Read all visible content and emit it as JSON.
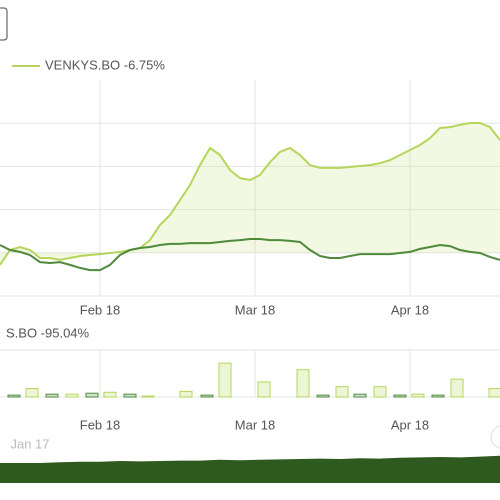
{
  "chart_data": [
    {
      "type": "line",
      "x": [
        0,
        2,
        4,
        6,
        8,
        10,
        12,
        14,
        16,
        18,
        20,
        22,
        24,
        26,
        28,
        30,
        32,
        34,
        36,
        38,
        40,
        42,
        44,
        46,
        48,
        50,
        52,
        54,
        56,
        58,
        60,
        62,
        64,
        66,
        68,
        70,
        72,
        74,
        76,
        78,
        80,
        82,
        84,
        86,
        88,
        90,
        92,
        94,
        96,
        98,
        100
      ],
      "series": [
        {
          "name": "VENKYS.BO -6.75%",
          "color": "#b5d65a",
          "area": true,
          "values": [
            -5.6,
            1.3,
            2.7,
            1.3,
            -2.4,
            -2.4,
            -3.3,
            -2.4,
            -1.5,
            -1.0,
            -0.6,
            -0.1,
            0.4,
            1.3,
            2.2,
            5.9,
            12.9,
            17.5,
            24.4,
            31.4,
            40.6,
            48.5,
            45.3,
            38.3,
            34.6,
            33.7,
            36.0,
            42.0,
            46.7,
            48.5,
            45.3,
            40.6,
            39.3,
            39.3,
            39.3,
            39.7,
            40.2,
            40.6,
            41.5,
            42.9,
            45.3,
            47.6,
            49.9,
            53.1,
            57.8,
            58.2,
            59.2,
            60.1,
            60.1,
            58.2,
            52.2
          ]
        },
        {
          "color": "#4f8a3c",
          "area": false,
          "values": [
            3.6,
            1.3,
            0.4,
            -1.0,
            -4.3,
            -4.7,
            -4.3,
            -5.6,
            -7.0,
            -8.0,
            -8.0,
            -5.6,
            -1.0,
            1.3,
            2.2,
            2.7,
            3.6,
            4.1,
            4.1,
            4.5,
            4.5,
            4.5,
            5.0,
            5.5,
            5.9,
            6.4,
            6.4,
            5.9,
            5.9,
            5.5,
            5.0,
            1.3,
            -1.5,
            -2.4,
            -2.4,
            -1.5,
            -0.6,
            -0.6,
            -0.6,
            -0.6,
            -0.1,
            0.4,
            1.8,
            2.7,
            3.6,
            3.1,
            1.3,
            0.4,
            -0.1,
            -1.9,
            -3.3
          ]
        }
      ],
      "xlim": [
        0,
        100
      ],
      "xticks": [
        {
          "value": 20,
          "label": "Feb 18"
        },
        {
          "value": 51,
          "label": "Mar 18"
        },
        {
          "value": 82,
          "label": "Apr 18"
        }
      ],
      "ylim": [
        -20,
        80
      ],
      "yticks": [
        -20,
        0,
        20,
        40,
        60
      ],
      "grid": true
    },
    {
      "type": "bar",
      "title": "S.BO -95.04%",
      "x": [
        2.8,
        6.4,
        10.4,
        14.4,
        18.4,
        22,
        26,
        29.6,
        37.2,
        41.4,
        45,
        52.8,
        60.6,
        64.6,
        68.4,
        72,
        76,
        80,
        83.6,
        87.6,
        91.4,
        99
      ],
      "values": [
        2,
        9,
        3,
        3,
        4,
        5,
        3,
        1,
        6,
        2,
        36,
        16,
        29,
        2,
        11,
        3,
        11,
        2,
        3,
        2,
        19,
        9
      ],
      "colors": [
        "#4f8a3c",
        "#b5d65a",
        "#4f8a3c",
        "#b5d65a",
        "#4f8a3c",
        "#b5d65a",
        "#4f8a3c",
        "#b5d65a",
        "#b5d65a",
        "#4f8a3c",
        "#b5d65a",
        "#b5d65a",
        "#b5d65a",
        "#4f8a3c",
        "#b5d65a",
        "#4f8a3c",
        "#b5d65a",
        "#4f8a3c",
        "#b5d65a",
        "#4f8a3c",
        "#b5d65a",
        "#b5d65a"
      ],
      "xlim": [
        0,
        100
      ],
      "xticks": [
        {
          "value": 20,
          "label": "Feb 18"
        },
        {
          "value": 51,
          "label": "Mar 18"
        },
        {
          "value": 82,
          "label": "Apr 18"
        }
      ],
      "ylim": [
        0,
        50
      ],
      "yticks": [
        0,
        50
      ],
      "grid": true
    },
    {
      "type": "area",
      "color": "#2f5a1f",
      "x": [
        0,
        4,
        8,
        12,
        16,
        20,
        24,
        28,
        32,
        36,
        40,
        44,
        48,
        52,
        56,
        60,
        64,
        68,
        72,
        76,
        80,
        84,
        88,
        92,
        96,
        100
      ],
      "values": [
        5,
        5,
        5,
        5.2,
        5.3,
        5.3,
        5.5,
        5.4,
        5.5,
        5.6,
        5.6,
        5.8,
        5.7,
        5.8,
        5.9,
        6,
        6.1,
        6,
        6.2,
        6.1,
        6.3,
        6.4,
        6.5,
        6.4,
        6.6,
        6.8
      ],
      "xlim": [
        0,
        100
      ],
      "xticks": [
        {
          "value": 6,
          "label": "Jan 17"
        }
      ],
      "ylim": [
        0,
        10
      ]
    }
  ]
}
